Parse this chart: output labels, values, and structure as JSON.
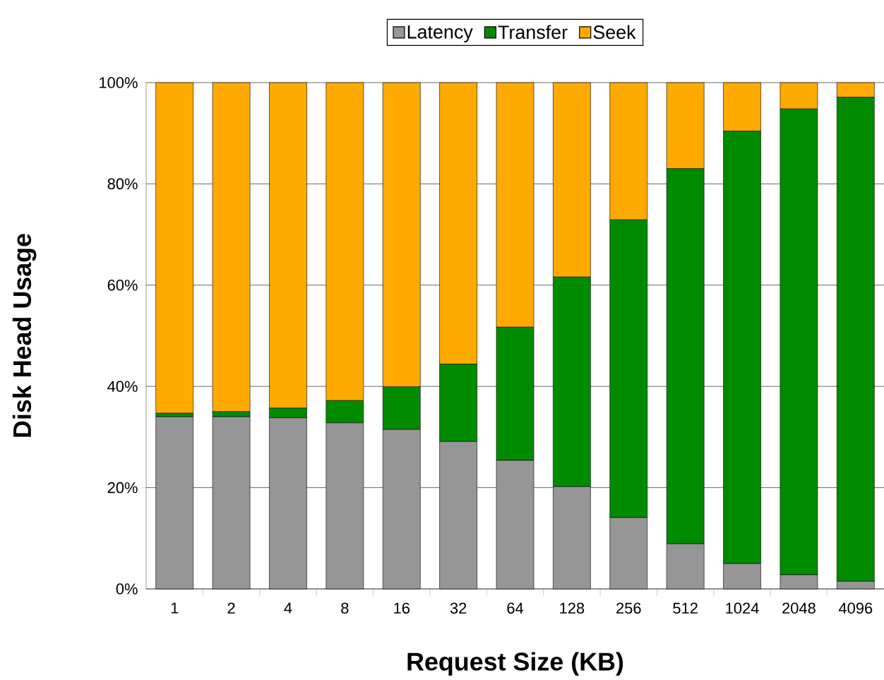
{
  "chart_data": {
    "type": "bar",
    "stacked": true,
    "xlabel": "Request Size (KB)",
    "ylabel": "Disk Head Usage",
    "categories": [
      "1",
      "2",
      "4",
      "8",
      "16",
      "32",
      "64",
      "128",
      "256",
      "512",
      "1024",
      "2048",
      "4096"
    ],
    "series": [
      {
        "name": "Latency",
        "color": "#969696",
        "values": [
          34.0,
          34.0,
          33.8,
          32.8,
          31.5,
          29.1,
          25.4,
          20.2,
          14.1,
          8.9,
          5.0,
          2.8,
          1.5
        ]
      },
      {
        "name": "Transfer",
        "color": "#008a00",
        "values": [
          0.7,
          1.0,
          1.9,
          4.4,
          8.4,
          15.3,
          26.3,
          41.4,
          58.8,
          74.1,
          85.4,
          92.0,
          95.6
        ]
      },
      {
        "name": "Seek",
        "color": "#ffaa00",
        "values": [
          65.3,
          65.0,
          64.3,
          62.8,
          60.1,
          55.6,
          48.3,
          38.4,
          27.1,
          17.0,
          9.6,
          5.2,
          2.9
        ]
      }
    ],
    "ylim": [
      0,
      100
    ],
    "yticks": [
      {
        "value": 0,
        "label": "0%"
      },
      {
        "value": 20,
        "label": "20%"
      },
      {
        "value": 40,
        "label": "40%"
      },
      {
        "value": 60,
        "label": "60%"
      },
      {
        "value": 80,
        "label": "80%"
      },
      {
        "value": 100,
        "label": "100%"
      }
    ],
    "grid": "y",
    "legend": "top"
  }
}
